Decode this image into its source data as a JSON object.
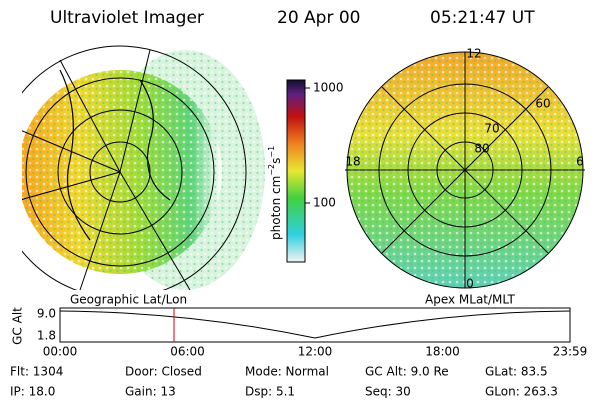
{
  "header": {
    "instrument": "Ultraviolet Imager",
    "date": "20 Apr 00",
    "time": "05:21:47 UT"
  },
  "colorbar": {
    "label": {
      "base": "photon cm",
      "sup1": "−2",
      "mid": "s",
      "sup2": "−1"
    },
    "ticks": [
      "1000",
      "100"
    ]
  },
  "polar": {
    "mlt": [
      "12",
      "6",
      "0",
      "18"
    ],
    "mlat": [
      "60",
      "70",
      "80"
    ]
  },
  "timeline": {
    "left_title": "Geographic Lat/Lon",
    "right_title": "Apex MLat/MLT",
    "y_label": "GC Alt",
    "y_ticks": [
      "9.0",
      "1.8"
    ],
    "x_ticks": [
      "00:00",
      "06:00",
      "12:00",
      "18:00",
      "23:59"
    ]
  },
  "footer": {
    "rows": [
      [
        "Flt: 1304",
        "Door: Closed",
        "Mode: Normal",
        "GC Alt: 9.0 Re",
        "GLat:  83.5"
      ],
      [
        "IP: 18.0",
        "Gain: 13",
        "Dsp:     5.1",
        "Seq: 30",
        "GLon: 263.3"
      ]
    ]
  }
}
